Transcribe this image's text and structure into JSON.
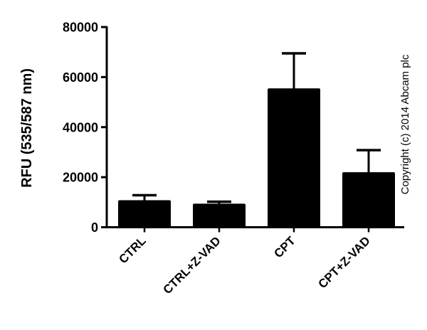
{
  "chart_data": {
    "type": "bar",
    "title": "",
    "xlabel": "",
    "ylabel": "RFU (535/587 nm)",
    "ylim": [
      0,
      80000
    ],
    "yticks": [
      0,
      20000,
      40000,
      60000,
      80000
    ],
    "ytick_labels": [
      "0",
      "20000",
      "40000",
      "60000",
      "80000"
    ],
    "categories": [
      "CTRL",
      "CTRL+Z-VAD",
      "CPT",
      "CPT+Z-VAD"
    ],
    "values": [
      10800,
      9400,
      55500,
      22000
    ],
    "error_upper": [
      12800,
      10200,
      69500,
      30800
    ],
    "error_bars": [
      2000,
      800,
      14000,
      8800
    ],
    "bar_color": "#000000",
    "grid": false,
    "legend": null,
    "annotation": "Copyright (c) 2014 Abcam plc"
  }
}
